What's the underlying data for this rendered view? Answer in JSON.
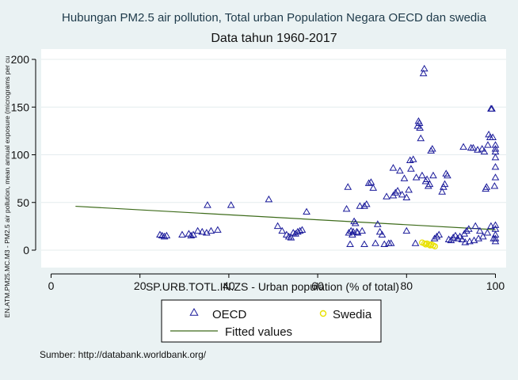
{
  "chart_data": {
    "type": "scatter",
    "title": "Hubungan PM2.5 air pollution, Total urban Population Negara OECD dan swedia",
    "subtitle": "Data tahun 1960-2017",
    "xlabel": "SP.URB.TOTL.IN.ZS - Urban population (% of total)",
    "ylabel": "EN.ATM.PM25.MC.M3 - PM2.5 air pollution, mean annual exposure (micrograms per cu",
    "xlim": [
      0,
      100
    ],
    "ylim": [
      0,
      200
    ],
    "xticks": [
      "0",
      "20",
      "40",
      "60",
      "80",
      "100"
    ],
    "yticks": [
      "0",
      "50",
      "100",
      "150",
      "200"
    ],
    "grid": true,
    "legend_position": "bottom",
    "note": "Sumber: http://databank.worldbank.org/",
    "colors": {
      "background": "#eaf2f3",
      "plot_background": "#ffffff",
      "grid": "#e4ecee",
      "oecd": "#1a1a9a",
      "swedia": "#e8e000",
      "fitted": "#3d6b1a",
      "text": "#1a1a1a"
    },
    "series": [
      {
        "name": "OECD",
        "marker": "triangle-hollow",
        "points": [
          [
            24.5,
            16
          ],
          [
            25,
            15
          ],
          [
            25.5,
            14
          ],
          [
            26,
            15
          ],
          [
            29.5,
            16
          ],
          [
            31,
            17
          ],
          [
            31.5,
            15
          ],
          [
            32,
            16
          ],
          [
            33,
            20
          ],
          [
            34,
            19
          ],
          [
            35,
            18
          ],
          [
            35.2,
            47
          ],
          [
            36,
            20
          ],
          [
            37.5,
            21
          ],
          [
            40.5,
            47
          ],
          [
            49,
            53
          ],
          [
            51,
            25
          ],
          [
            52,
            20
          ],
          [
            53,
            16
          ],
          [
            53.5,
            14
          ],
          [
            54,
            13
          ],
          [
            54.5,
            18
          ],
          [
            55,
            17
          ],
          [
            55.5,
            19
          ],
          [
            56,
            20
          ],
          [
            56.5,
            21
          ],
          [
            57.5,
            40
          ],
          [
            66.5,
            43
          ],
          [
            66.8,
            66
          ],
          [
            67,
            18
          ],
          [
            67.3,
            6
          ],
          [
            67.5,
            20
          ],
          [
            67.8,
            16
          ],
          [
            68,
            19
          ],
          [
            68.2,
            30
          ],
          [
            68.5,
            28
          ],
          [
            68.8,
            19
          ],
          [
            69,
            18
          ],
          [
            69.5,
            46
          ],
          [
            70,
            20
          ],
          [
            70.5,
            6
          ],
          [
            70.5,
            46
          ],
          [
            71,
            48
          ],
          [
            71.5,
            70
          ],
          [
            72,
            71
          ],
          [
            72.5,
            65
          ],
          [
            73,
            7
          ],
          [
            73.5,
            27
          ],
          [
            74,
            19
          ],
          [
            74.5,
            16
          ],
          [
            75,
            6
          ],
          [
            75.5,
            56
          ],
          [
            76,
            7
          ],
          [
            76.5,
            7
          ],
          [
            77,
            57
          ],
          [
            77,
            86
          ],
          [
            77.5,
            60
          ],
          [
            78,
            62
          ],
          [
            78.5,
            83
          ],
          [
            79,
            58
          ],
          [
            79.5,
            75
          ],
          [
            80,
            20
          ],
          [
            80,
            55
          ],
          [
            80.5,
            63
          ],
          [
            80.8,
            94
          ],
          [
            81,
            85
          ],
          [
            81.5,
            95
          ],
          [
            82,
            7
          ],
          [
            82.2,
            76
          ],
          [
            82.5,
            130
          ],
          [
            82.7,
            135
          ],
          [
            82.9,
            133
          ],
          [
            83,
            128
          ],
          [
            83.2,
            117
          ],
          [
            83.5,
            78
          ],
          [
            83.8,
            185
          ],
          [
            84,
            190
          ],
          [
            84.3,
            72
          ],
          [
            84.6,
            74
          ],
          [
            84.9,
            67
          ],
          [
            85.2,
            69
          ],
          [
            85.5,
            104
          ],
          [
            85.8,
            106
          ],
          [
            86,
            78
          ],
          [
            86.3,
            12
          ],
          [
            86.8,
            14
          ],
          [
            87.3,
            16
          ],
          [
            88,
            61
          ],
          [
            88.3,
            66
          ],
          [
            88.6,
            69
          ],
          [
            88.9,
            80
          ],
          [
            89.2,
            78
          ],
          [
            89.5,
            11
          ],
          [
            90,
            10
          ],
          [
            90.5,
            13
          ],
          [
            91,
            15
          ],
          [
            91.5,
            12
          ],
          [
            92,
            14
          ],
          [
            92.5,
            11
          ],
          [
            92.8,
            108
          ],
          [
            93,
            17
          ],
          [
            93.5,
            20
          ],
          [
            94,
            22
          ],
          [
            94.5,
            107
          ],
          [
            95,
            107
          ],
          [
            95.5,
            25
          ],
          [
            96,
            105
          ],
          [
            96.5,
            20
          ],
          [
            97,
            106
          ],
          [
            97.5,
            103
          ],
          [
            97.8,
            64
          ],
          [
            98,
            66
          ],
          [
            98.3,
            110
          ],
          [
            98.5,
            121
          ],
          [
            98.8,
            118
          ],
          [
            99,
            148
          ],
          [
            99.2,
            148
          ],
          [
            99.4,
            118
          ],
          [
            99.6,
            12
          ],
          [
            99.8,
            67
          ],
          [
            100,
            110
          ],
          [
            100,
            106
          ],
          [
            100,
            103
          ],
          [
            100,
            97
          ],
          [
            100,
            87
          ],
          [
            100,
            76
          ],
          [
            100,
            26
          ],
          [
            100,
            22
          ],
          [
            100,
            16
          ],
          [
            100,
            12
          ],
          [
            100,
            9
          ],
          [
            93.2,
            8
          ],
          [
            94.2,
            9
          ],
          [
            95.2,
            10
          ],
          [
            96.2,
            12
          ],
          [
            97.2,
            14
          ],
          [
            98.2,
            18
          ],
          [
            99,
            25
          ]
        ]
      },
      {
        "name": "Swedia",
        "marker": "circle-hollow",
        "points": [
          [
            83.5,
            8
          ],
          [
            84,
            7
          ],
          [
            84.3,
            6
          ],
          [
            84.6,
            7
          ],
          [
            85,
            6
          ],
          [
            85.3,
            5
          ],
          [
            85.6,
            6
          ],
          [
            86,
            5
          ],
          [
            86.4,
            4
          ]
        ]
      },
      {
        "name": "Fitted values",
        "type": "line",
        "points": [
          [
            5.5,
            46
          ],
          [
            100,
            21.5
          ]
        ]
      }
    ]
  }
}
